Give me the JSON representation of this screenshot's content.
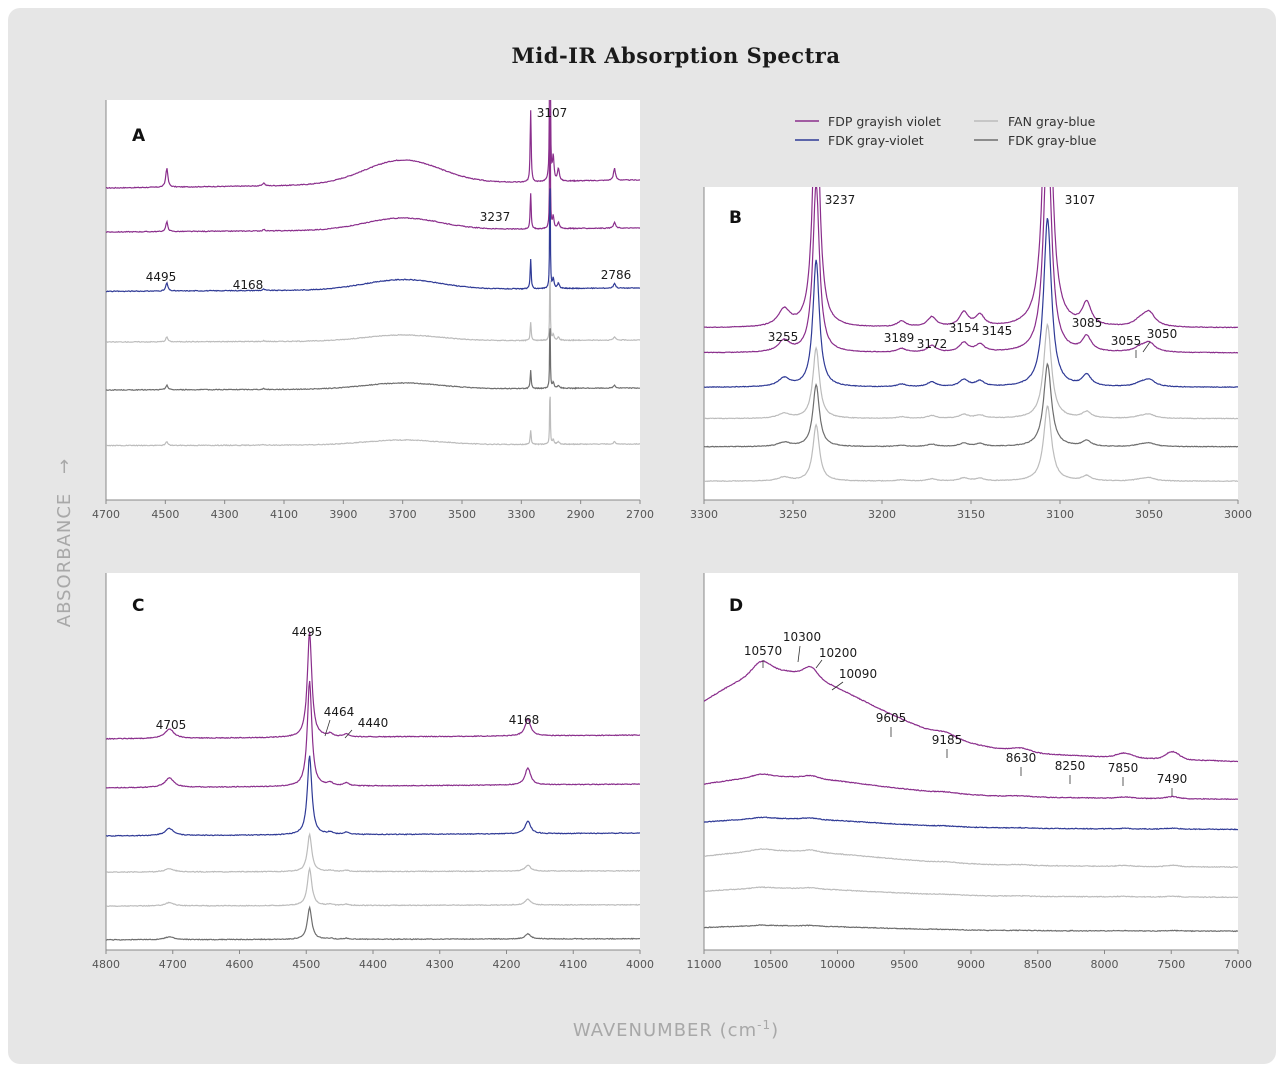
{
  "title": "Mid-IR Absorption Spectra",
  "ylabel": "ABSORBANCE",
  "xlabel": "WAVENUMBER (cm",
  "xlabel_sup": "-1",
  "xlabel_end": ")",
  "legend": [
    {
      "label": "FDP grayish violet",
      "color": "#8a2e8c"
    },
    {
      "label": "FDK gray-violet",
      "color": "#2f3a96"
    },
    {
      "label": "FAN gray-blue",
      "color": "#bcbcbc"
    },
    {
      "label": "FDK gray-blue",
      "color": "#6e6e6e"
    }
  ],
  "chart_data": [
    {
      "panel": "A",
      "type": "line",
      "x_ticks": [
        4700,
        4500,
        4300,
        4100,
        3900,
        3700,
        3500,
        3300,
        2900,
        2700
      ],
      "traces": [
        {
          "color": "#8a2e8c",
          "baseline": 0.8,
          "scale": 1.0
        },
        {
          "color": "#8a2e8c",
          "baseline": 0.68,
          "scale": 0.5
        },
        {
          "color": "#2f3a96",
          "baseline": 0.53,
          "scale": 0.42
        },
        {
          "color": "#bcbcbc",
          "baseline": 0.4,
          "scale": 0.25
        },
        {
          "color": "#6e6e6e",
          "baseline": 0.28,
          "scale": 0.25
        },
        {
          "color": "#bcbcbc",
          "baseline": 0.14,
          "scale": 0.2
        }
      ],
      "peaks": [
        {
          "label": "4495",
          "x": 4495
        },
        {
          "label": "4168",
          "x": 4168
        },
        {
          "label": "3237",
          "x": 3237
        },
        {
          "label": "3107",
          "x": 3107
        },
        {
          "label": "2786",
          "x": 2786
        }
      ]
    },
    {
      "panel": "B",
      "type": "line",
      "x_ticks": [
        3300,
        3250,
        3200,
        3150,
        3100,
        3050,
        3000
      ],
      "traces": [
        {
          "color": "#8a2e8c",
          "baseline": 0.55
        },
        {
          "color": "#8a2e8c",
          "baseline": 0.47
        },
        {
          "color": "#2f3a96",
          "baseline": 0.36
        },
        {
          "color": "#bcbcbc",
          "baseline": 0.26
        },
        {
          "color": "#6e6e6e",
          "baseline": 0.17
        },
        {
          "color": "#bcbcbc",
          "baseline": 0.06
        }
      ],
      "peaks": [
        {
          "label": "3255",
          "x": 3255
        },
        {
          "label": "3237",
          "x": 3237
        },
        {
          "label": "3189",
          "x": 3189
        },
        {
          "label": "3172",
          "x": 3172
        },
        {
          "label": "3154",
          "x": 3154
        },
        {
          "label": "3145",
          "x": 3145
        },
        {
          "label": "3107",
          "x": 3107
        },
        {
          "label": "3085",
          "x": 3085
        },
        {
          "label": "3055",
          "x": 3055
        },
        {
          "label": "3050",
          "x": 3050
        }
      ]
    },
    {
      "panel": "C",
      "type": "line",
      "x_ticks": [
        4800,
        4700,
        4600,
        4500,
        4400,
        4300,
        4200,
        4100,
        4000
      ],
      "traces": [
        {
          "color": "#8a2e8c",
          "baseline": 0.57
        },
        {
          "color": "#8a2e8c",
          "baseline": 0.44
        },
        {
          "color": "#2f3a96",
          "baseline": 0.31
        },
        {
          "color": "#bcbcbc",
          "baseline": 0.21
        },
        {
          "color": "#bcbcbc",
          "baseline": 0.12
        },
        {
          "color": "#6e6e6e",
          "baseline": 0.03
        }
      ],
      "peaks": [
        {
          "label": "4705",
          "x": 4705
        },
        {
          "label": "4495",
          "x": 4495
        },
        {
          "label": "4464",
          "x": 4464
        },
        {
          "label": "4440",
          "x": 4440
        },
        {
          "label": "4168",
          "x": 4168
        }
      ]
    },
    {
      "panel": "D",
      "type": "line",
      "x_ticks": [
        11000,
        10500,
        10000,
        9500,
        9000,
        8500,
        8000,
        7500,
        7000
      ],
      "traces": [
        {
          "color": "#8a2e8c",
          "baseline": 0.5
        },
        {
          "color": "#8a2e8c",
          "baseline": 0.4
        },
        {
          "color": "#2f3a96",
          "baseline": 0.32
        },
        {
          "color": "#bcbcbc",
          "baseline": 0.22
        },
        {
          "color": "#bcbcbc",
          "baseline": 0.14
        },
        {
          "color": "#6e6e6e",
          "baseline": 0.05
        }
      ],
      "peaks": [
        {
          "label": "10570",
          "x": 10570
        },
        {
          "label": "10300",
          "x": 10300
        },
        {
          "label": "10200",
          "x": 10200
        },
        {
          "label": "10090",
          "x": 10090
        },
        {
          "label": "9605",
          "x": 9605
        },
        {
          "label": "9185",
          "x": 9185
        },
        {
          "label": "8630",
          "x": 8630
        },
        {
          "label": "8250",
          "x": 8250
        },
        {
          "label": "7850",
          "x": 7850
        },
        {
          "label": "7490",
          "x": 7490
        }
      ]
    }
  ]
}
